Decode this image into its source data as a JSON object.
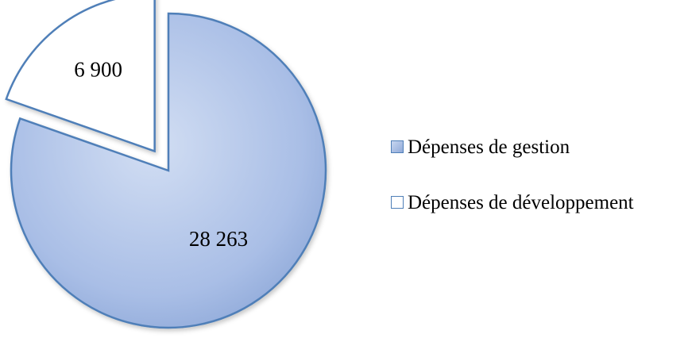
{
  "chart_data": {
    "type": "pie",
    "title": "",
    "slices": [
      {
        "name": "Dépenses de gestion",
        "value": 28263,
        "label": "28 263"
      },
      {
        "name": "Dépenses de développement",
        "value": 6900,
        "label": "6 900"
      }
    ],
    "legend_placement": "right",
    "exploded_slice": "Dépenses de développement",
    "colors": {
      "gestion_fill_light": "#c9d7f0",
      "gestion_fill_dark": "#8fa9d8",
      "developpement_fill": "#ffffff",
      "outline": "#4f7fb8"
    }
  }
}
